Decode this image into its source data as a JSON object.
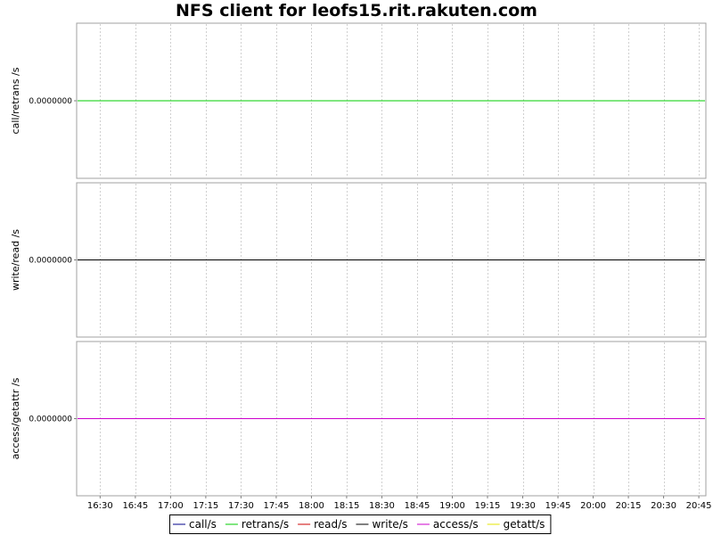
{
  "chart_data": {
    "type": "line",
    "title": "NFS client for leofs15.rit.rakuten.com",
    "x": [
      "16:30",
      "16:45",
      "17:00",
      "17:15",
      "17:30",
      "17:45",
      "18:00",
      "18:15",
      "18:30",
      "18:45",
      "19:00",
      "19:15",
      "19:30",
      "19:45",
      "20:00",
      "20:15",
      "20:30",
      "20:45"
    ],
    "x_start": "16:20",
    "x_end": "20:48",
    "panels": [
      {
        "ylabel": "call/retrans /s",
        "ytick": "0.0000000",
        "ylim": [
          -1,
          1
        ],
        "series": [
          {
            "name": "call/s",
            "color": "#00008b",
            "values": [
              0,
              0,
              0,
              0,
              0,
              0,
              0,
              0,
              0,
              0,
              0,
              0,
              0,
              0,
              0,
              0,
              0,
              0
            ]
          },
          {
            "name": "retrans/s",
            "color": "#00cc00",
            "values": [
              0,
              0,
              0,
              0,
              0,
              0,
              0,
              0,
              0,
              0,
              0,
              0,
              0,
              0,
              0,
              0,
              0,
              0
            ]
          }
        ]
      },
      {
        "ylabel": "write/read /s",
        "ytick": "0.0000000",
        "ylim": [
          -1,
          1
        ],
        "series": [
          {
            "name": "read/s",
            "color": "#cc0000",
            "values": [
              0,
              0,
              0,
              0,
              0,
              0,
              0,
              0,
              0,
              0,
              0,
              0,
              0,
              0,
              0,
              0,
              0,
              0
            ]
          },
          {
            "name": "write/s",
            "color": "#000000",
            "values": [
              0,
              0,
              0,
              0,
              0,
              0,
              0,
              0,
              0,
              0,
              0,
              0,
              0,
              0,
              0,
              0,
              0,
              0
            ]
          }
        ]
      },
      {
        "ylabel": "access/getattr /s",
        "ytick": "0.0000000",
        "ylim": [
          -1,
          1
        ],
        "series": [
          {
            "name": "getatt/s",
            "color": "#e6e600",
            "values": [
              0,
              0,
              0,
              0,
              0,
              0,
              0,
              0,
              0,
              0,
              0,
              0,
              0,
              0,
              0,
              0,
              0,
              0
            ]
          },
          {
            "name": "access/s",
            "color": "#cc00cc",
            "values": [
              0,
              0,
              0,
              0,
              0,
              0,
              0,
              0,
              0,
              0,
              0,
              0,
              0,
              0,
              0,
              0,
              0,
              0
            ]
          }
        ]
      }
    ],
    "legend": [
      {
        "name": "call/s",
        "color": "#00008b"
      },
      {
        "name": "retrans/s",
        "color": "#00cc00"
      },
      {
        "name": "read/s",
        "color": "#cc0000"
      },
      {
        "name": "write/s",
        "color": "#000000"
      },
      {
        "name": "access/s",
        "color": "#cc00cc"
      },
      {
        "name": "getatt/s",
        "color": "#e6e600"
      }
    ],
    "legend_position": "bottom-center",
    "grid": true
  }
}
